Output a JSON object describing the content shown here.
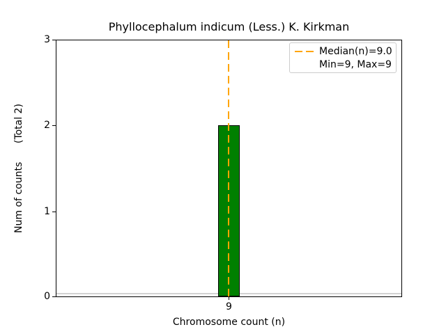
{
  "title": "Phyllocephalum indicum (Less.) K. Kirkman",
  "axes": {
    "x_label": "Chromosome count (n)",
    "y_label": "Num of counts      (Total 2)",
    "x_tick_labels": [
      "9"
    ],
    "y_tick_labels_top_to_bottom": [
      "3",
      "2",
      "1",
      "0"
    ]
  },
  "legend": {
    "position": "upper right",
    "entries": [
      {
        "marker": "orange-dashed-line",
        "label": "Median(n)=9.0"
      },
      {
        "marker": "none",
        "label": "Min=9, Max=9"
      }
    ]
  },
  "colors": {
    "bar_fill": "#008000",
    "bar_edge": "#000000",
    "median_line": "#ffa500",
    "baseline_line": "#d3d3d3",
    "legend_border": "#cccccc",
    "text": "#000000",
    "background": "#ffffff"
  },
  "chart_data": {
    "type": "bar",
    "title": "Phyllocephalum indicum (Less.) K. Kirkman",
    "xlabel": "Chromosome count (n)",
    "ylabel": "Num of counts (Total 2)",
    "categories": [
      9
    ],
    "values": [
      2
    ],
    "total_counts": 2,
    "xticks": [
      9
    ],
    "yticks": [
      0,
      1,
      2,
      3
    ],
    "ylim": [
      0,
      3
    ],
    "grid": false,
    "legend_position": "upper right",
    "bar_color": "#008000",
    "bar_edge_color": "#000000",
    "median_n": 9.0,
    "min_n": 9,
    "max_n": 9,
    "median_line": {
      "x": 9.0,
      "color": "#ffa500",
      "style": "dashed",
      "orientation": "vertical"
    },
    "baseline_line": {
      "y": 0.04,
      "color": "#d3d3d3",
      "orientation": "horizontal"
    },
    "legend_entries": [
      "Median(n)=9.0",
      "Min=9, Max=9"
    ]
  }
}
